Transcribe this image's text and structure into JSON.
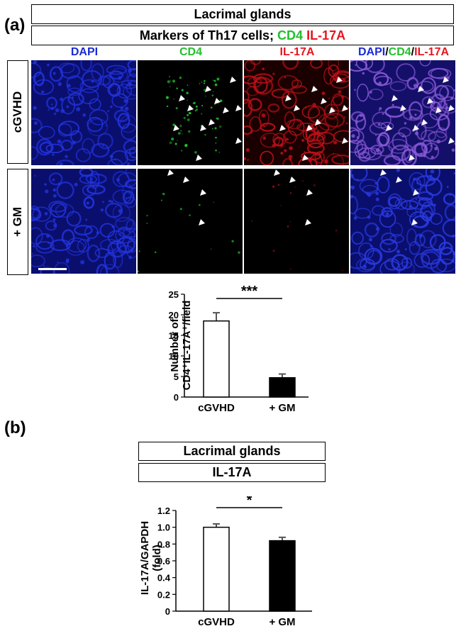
{
  "panel_a": {
    "letter": "(a)",
    "header_title": "Lacrimal glands",
    "subheader_prefix": "Markers of Th17 cells;",
    "subheader_cd4": "CD4",
    "subheader_il17": "IL-17A",
    "columns": {
      "dapi": "DAPI",
      "cd4": "CD4",
      "il17": "IL-17A",
      "merge_dapi": "DAPI",
      "merge_slash1": "/",
      "merge_cd4": "CD4",
      "merge_slash2": "/",
      "merge_il17": "IL-17A"
    },
    "rows": [
      "cGVHD",
      "+ GM"
    ]
  },
  "panel_b": {
    "letter": "(b)",
    "header_title": "Lacrimal glands",
    "subheader": "IL-17A"
  },
  "colors": {
    "dapi": "#1a2bd6",
    "cd4": "#22c02e",
    "il17": "#e8141e",
    "bar_cgvhd": "#ffffff",
    "bar_gm": "#000000"
  },
  "chart_data": [
    {
      "type": "bar",
      "categories": [
        "cGVHD",
        "+ GM"
      ],
      "values": [
        18.5,
        4.7
      ],
      "errors": [
        2.0,
        0.9
      ],
      "ylabel_line1": "Number of",
      "ylabel_line2": "CD4⁺IL-17A⁺/field",
      "ylim": [
        0,
        25
      ],
      "yticks": [
        "0",
        "5",
        "10",
        "15",
        "20",
        "25"
      ],
      "significance": "***"
    },
    {
      "type": "bar",
      "categories": [
        "cGVHD",
        "+ GM"
      ],
      "values": [
        1.0,
        0.84
      ],
      "errors": [
        0.04,
        0.04
      ],
      "ylabel_line1": "IL-17A/GAPDH",
      "ylabel_line2": "(fold)",
      "ylim": [
        0,
        1.2
      ],
      "yticks": [
        "0",
        "0.2",
        "0.4",
        "0.6",
        "0.8",
        "1.0",
        "1.2"
      ],
      "significance": "*"
    }
  ]
}
